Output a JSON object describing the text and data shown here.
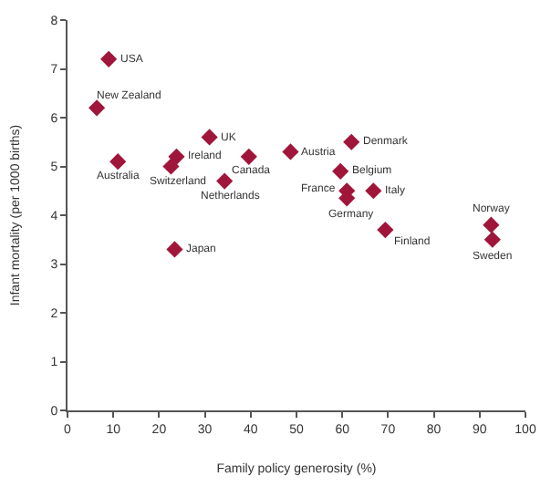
{
  "chart_data": {
    "type": "scatter",
    "xlabel": "Family policy generosity (%)",
    "ylabel": "Infant mortality (per 1000 births)",
    "x": [
      9,
      6.4,
      11,
      31,
      23.8,
      22.6,
      39.6,
      34.3,
      48.7,
      62,
      59.6,
      61,
      61,
      66.8,
      69.4,
      92.5,
      92.8,
      23.4
    ],
    "series": [
      {
        "color": "#a0163a",
        "values": [
          7.2,
          6.2,
          5.1,
          5.6,
          5.2,
          5.0,
          5.2,
          4.7,
          5.3,
          5.5,
          4.9,
          4.5,
          4.35,
          4.5,
          3.7,
          3.8,
          3.5,
          3.3
        ]
      }
    ],
    "marker": "diamond",
    "xlim": [
      0,
      100
    ],
    "xticks": [
      0,
      10,
      20,
      30,
      40,
      50,
      60,
      70,
      80,
      90,
      100
    ],
    "ylim": [
      0,
      8
    ],
    "yticks": [
      0,
      1,
      2,
      3,
      4,
      5,
      6,
      7,
      8
    ],
    "annotations": [
      {
        "text": "USA",
        "x": 9,
        "y": 7.2
      },
      {
        "text": "New Zealand",
        "x": 6.4,
        "y": 6.2
      },
      {
        "text": "Australia",
        "x": 11,
        "y": 5.1
      },
      {
        "text": "UK",
        "x": 31,
        "y": 5.6
      },
      {
        "text": "Ireland",
        "x": 23.8,
        "y": 5.2
      },
      {
        "text": "Switzerland",
        "x": 22.6,
        "y": 5.0
      },
      {
        "text": "Canada",
        "x": 39.6,
        "y": 5.2
      },
      {
        "text": "Netherlands",
        "x": 34.3,
        "y": 4.7
      },
      {
        "text": "Austria",
        "x": 48.7,
        "y": 5.3
      },
      {
        "text": "Denmark",
        "x": 62,
        "y": 5.5
      },
      {
        "text": "Belgium",
        "x": 59.6,
        "y": 4.9
      },
      {
        "text": "France",
        "x": 61,
        "y": 4.5
      },
      {
        "text": "Germany",
        "x": 61,
        "y": 4.35
      },
      {
        "text": "Italy",
        "x": 66.8,
        "y": 4.5
      },
      {
        "text": "Finland",
        "x": 69.4,
        "y": 3.7
      },
      {
        "text": "Norway",
        "x": 92.5,
        "y": 3.8
      },
      {
        "text": "Sweden",
        "x": 92.8,
        "y": 3.5
      },
      {
        "text": "Japan",
        "x": 23.4,
        "y": 3.3
      }
    ]
  }
}
